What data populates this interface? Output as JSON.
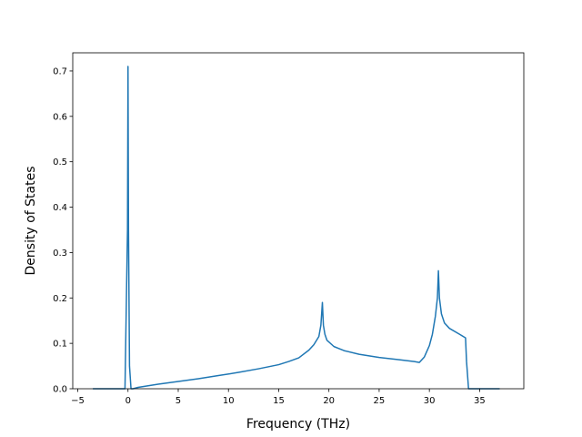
{
  "chart_data": {
    "type": "line",
    "xlabel": "Frequency (THz)",
    "ylabel": "Density of States",
    "xlim": [
      -5.5,
      39.4
    ],
    "ylim": [
      0.0,
      0.74
    ],
    "xticks": [
      -5,
      0,
      5,
      10,
      15,
      20,
      25,
      30,
      35
    ],
    "yticks": [
      0.0,
      0.1,
      0.2,
      0.3,
      0.4,
      0.5,
      0.6,
      0.7
    ],
    "grid": false,
    "color": "#1f77b4",
    "series": [
      {
        "x": [
          -3.5,
          -0.3,
          -0.05,
          0.0,
          0.05,
          0.15,
          0.3,
          0.5,
          1,
          3,
          5,
          7,
          9,
          11,
          13,
          15,
          16,
          17,
          18,
          18.5,
          19,
          19.2,
          19.35,
          19.45,
          19.6,
          19.8,
          20.5,
          21.5,
          23,
          25,
          27,
          28.5,
          29,
          29.5,
          30,
          30.3,
          30.6,
          30.8,
          30.9,
          31.0,
          31.2,
          31.5,
          32,
          33,
          33.6,
          33.7,
          33.9,
          35,
          37
        ],
        "y": [
          0.0,
          0.0,
          0.35,
          0.71,
          0.35,
          0.05,
          0.0,
          0.0,
          0.003,
          0.01,
          0.016,
          0.022,
          0.029,
          0.036,
          0.044,
          0.053,
          0.06,
          0.068,
          0.085,
          0.097,
          0.115,
          0.14,
          0.19,
          0.14,
          0.12,
          0.107,
          0.093,
          0.084,
          0.076,
          0.069,
          0.064,
          0.06,
          0.058,
          0.07,
          0.095,
          0.12,
          0.16,
          0.2,
          0.26,
          0.2,
          0.165,
          0.145,
          0.133,
          0.12,
          0.112,
          0.06,
          0.0,
          0.0,
          0.0
        ]
      }
    ]
  }
}
